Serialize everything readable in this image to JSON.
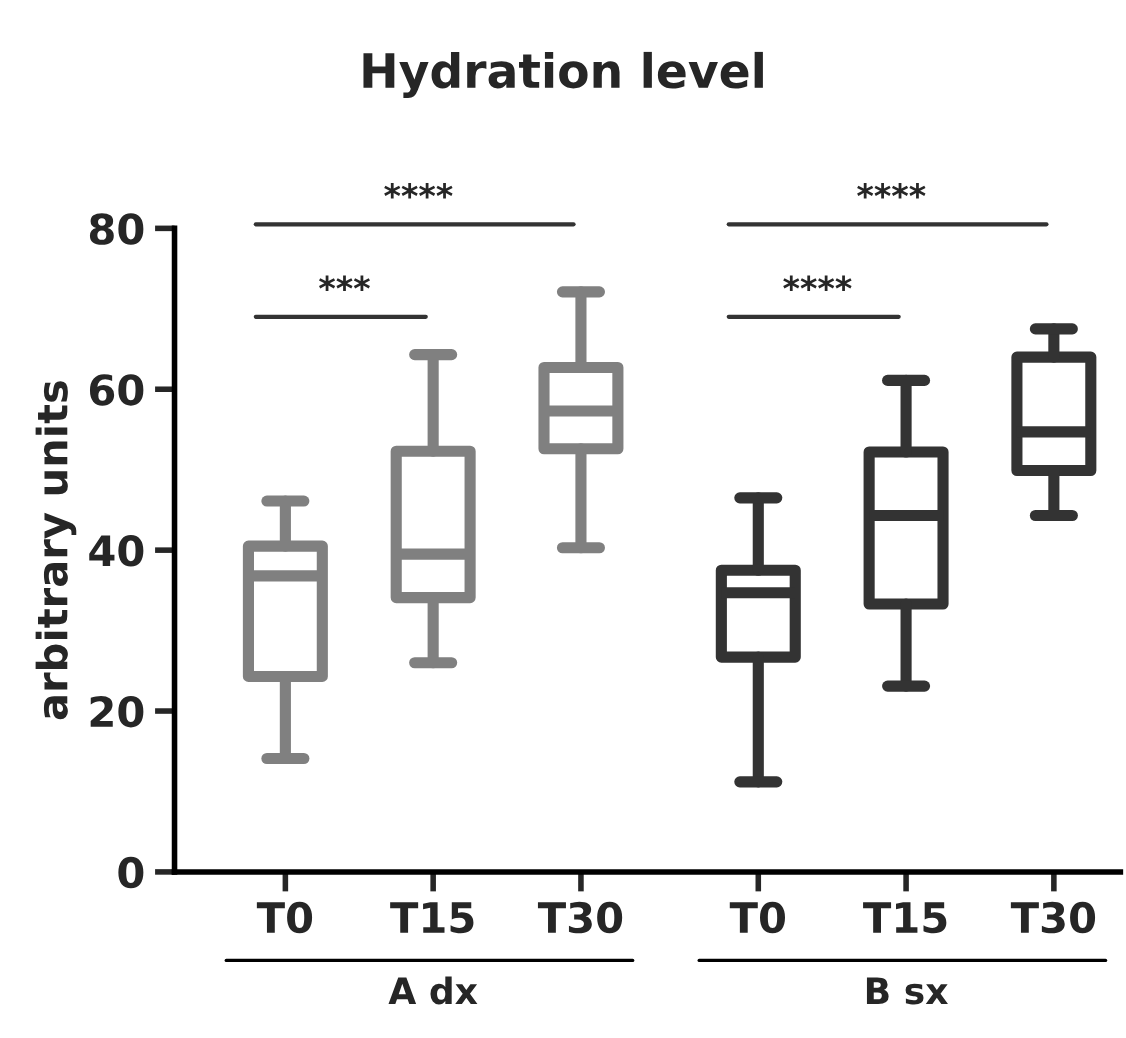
{
  "chart_data": {
    "type": "box",
    "title": "Hydration level",
    "ylabel": "arbitrary units",
    "categories": [
      "T0",
      "T15",
      "T30",
      "T0",
      "T15",
      "T30"
    ],
    "ylim": [
      0,
      80
    ],
    "yticks": [
      0,
      20,
      40,
      60,
      80
    ],
    "grid": false,
    "legend": false,
    "series": [
      {
        "color": "#808080",
        "boxes": [
          {
            "low": 14.1,
            "q1": 24.3,
            "median": 36.8,
            "q3": 40.5,
            "high": 46.1
          },
          {
            "low": 26.0,
            "q1": 34.1,
            "median": 39.5,
            "q3": 52.3,
            "high": 64.3
          },
          {
            "low": 40.3,
            "q1": 52.6,
            "median": 57.3,
            "q3": 62.7,
            "high": 72.1
          },
          null,
          null,
          null
        ]
      },
      {
        "color": "#333333",
        "boxes": [
          null,
          null,
          null,
          {
            "low": 11.2,
            "q1": 26.7,
            "median": 34.7,
            "q3": 37.5,
            "high": 46.5
          },
          {
            "low": 23.1,
            "q1": 33.3,
            "median": 44.3,
            "q3": 52.2,
            "high": 61.1
          },
          {
            "low": 44.3,
            "q1": 49.9,
            "median": 54.7,
            "q3": 64.0,
            "high": 67.5
          }
        ]
      }
    ],
    "annotations": [
      "***",
      "****",
      "****",
      "****",
      "A dx",
      "B sx"
    ]
  }
}
